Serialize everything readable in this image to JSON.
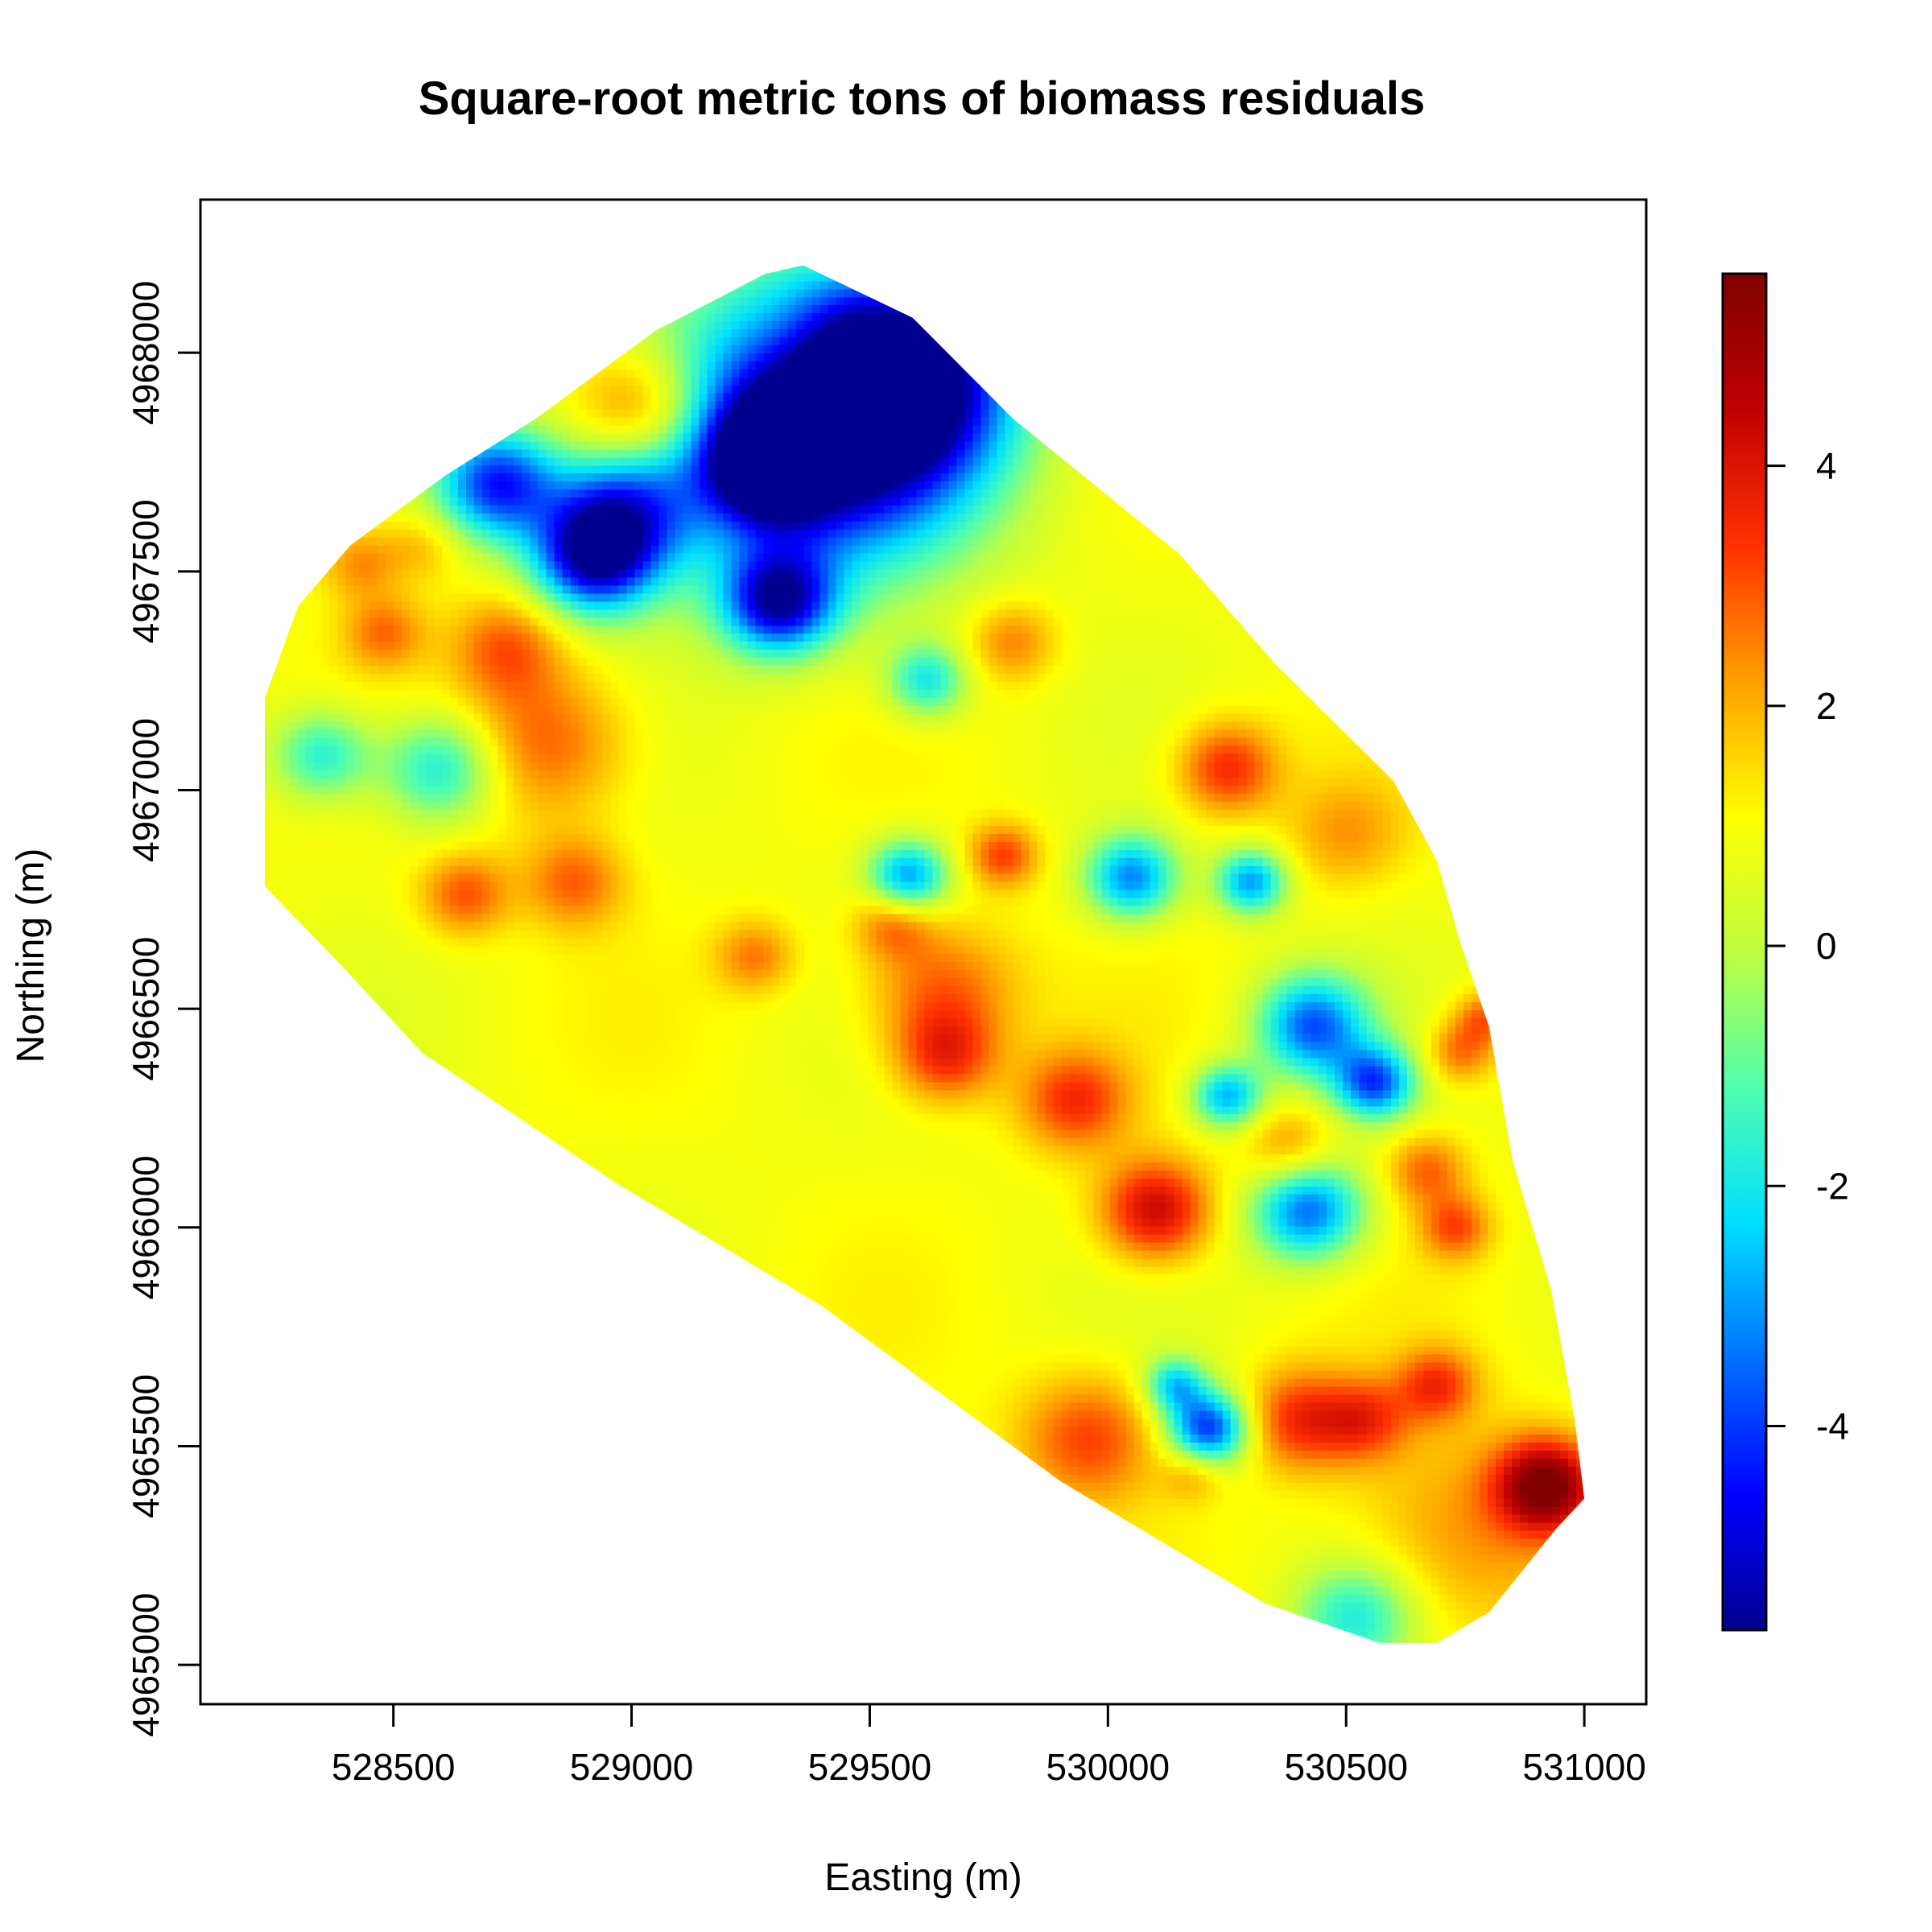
{
  "chart_data": {
    "type": "heatmap",
    "title": "Square-root metric tons of biomass residuals",
    "xlabel": "Easting (m)",
    "ylabel": "Northing (m)",
    "xlim": [
      528095,
      531130
    ],
    "ylim": [
      4964910,
      4968350
    ],
    "x_ticks": [
      528500,
      529000,
      529500,
      530000,
      530500,
      531000
    ],
    "y_ticks": [
      4965000,
      4965500,
      4966000,
      4966500,
      4967000,
      4967500,
      4968000
    ],
    "grid": false,
    "legend": "right",
    "colorbar": {
      "range": [
        -5.7,
        5.6
      ],
      "ticks": [
        -4,
        -2,
        0,
        2,
        4
      ],
      "palette": [
        "#00008F",
        "#0000FF",
        "#0070FF",
        "#00DFFF",
        "#50FFAF",
        "#BFFF40",
        "#FFFF00",
        "#FF9F00",
        "#FF3000",
        "#BF0000",
        "#800000"
      ]
    },
    "survey_boundary": [
      [
        528230,
        4967210
      ],
      [
        528300,
        4967420
      ],
      [
        528410,
        4967560
      ],
      [
        528610,
        4967720
      ],
      [
        528800,
        4967850
      ],
      [
        529050,
        4968050
      ],
      [
        529280,
        4968180
      ],
      [
        529360,
        4968200
      ],
      [
        529590,
        4968080
      ],
      [
        529800,
        4967850
      ],
      [
        530150,
        4967540
      ],
      [
        530350,
        4967290
      ],
      [
        530600,
        4967020
      ],
      [
        530690,
        4966840
      ],
      [
        530740,
        4966650
      ],
      [
        530800,
        4966460
      ],
      [
        530850,
        4966150
      ],
      [
        530930,
        4965860
      ],
      [
        530980,
        4965560
      ],
      [
        531000,
        4965380
      ],
      [
        530940,
        4965310
      ],
      [
        530800,
        4965120
      ],
      [
        530690,
        4965050
      ],
      [
        530570,
        4965050
      ],
      [
        530330,
        4965140
      ],
      [
        529900,
        4965420
      ],
      [
        529400,
        4965820
      ],
      [
        528970,
        4966100
      ],
      [
        528560,
        4966400
      ],
      [
        528390,
        4966600
      ],
      [
        528230,
        4966780
      ]
    ],
    "background": 0.9,
    "anomalies": [
      {
        "x": 529380,
        "y": 4967820,
        "v": -5.4,
        "r": 320
      },
      {
        "x": 529560,
        "y": 4967940,
        "v": -5.0,
        "r": 220
      },
      {
        "x": 529290,
        "y": 4967750,
        "v": -4.8,
        "r": 120
      },
      {
        "x": 529310,
        "y": 4967430,
        "v": -4.6,
        "r": 110
      },
      {
        "x": 528920,
        "y": 4967530,
        "v": -4.6,
        "r": 120
      },
      {
        "x": 528720,
        "y": 4967700,
        "v": -4.2,
        "r": 120
      },
      {
        "x": 528980,
        "y": 4967640,
        "v": -3.0,
        "r": 140
      },
      {
        "x": 529020,
        "y": 4967870,
        "v": 3.4,
        "r": 130
      },
      {
        "x": 529330,
        "y": 4968030,
        "v": 1.6,
        "r": 100
      },
      {
        "x": 528820,
        "y": 4967110,
        "v": 3.0,
        "r": 170
      },
      {
        "x": 528740,
        "y": 4967330,
        "v": 2.8,
        "r": 110
      },
      {
        "x": 528600,
        "y": 4967050,
        "v": -2.2,
        "r": 120
      },
      {
        "x": 528350,
        "y": 4967080,
        "v": -1.8,
        "r": 100
      },
      {
        "x": 528480,
        "y": 4967360,
        "v": 2.6,
        "r": 80
      },
      {
        "x": 528430,
        "y": 4967520,
        "v": 2.4,
        "r": 80
      },
      {
        "x": 528560,
        "y": 4967560,
        "v": 2.0,
        "r": 80
      },
      {
        "x": 528650,
        "y": 4966760,
        "v": 3.0,
        "r": 90
      },
      {
        "x": 528880,
        "y": 4966790,
        "v": 2.8,
        "r": 100
      },
      {
        "x": 529260,
        "y": 4966620,
        "v": 2.6,
        "r": 80
      },
      {
        "x": 529650,
        "y": 4966540,
        "v": 3.0,
        "r": 150
      },
      {
        "x": 529660,
        "y": 4966390,
        "v": 3.2,
        "r": 100
      },
      {
        "x": 529550,
        "y": 4966700,
        "v": 2.8,
        "r": 80
      },
      {
        "x": 529780,
        "y": 4966850,
        "v": 3.2,
        "r": 70
      },
      {
        "x": 529800,
        "y": 4967340,
        "v": 2.6,
        "r": 90
      },
      {
        "x": 530250,
        "y": 4967050,
        "v": 3.6,
        "r": 100
      },
      {
        "x": 530500,
        "y": 4966900,
        "v": 2.2,
        "r": 120
      },
      {
        "x": 529580,
        "y": 4966800,
        "v": -3.2,
        "r": 80
      },
      {
        "x": 529620,
        "y": 4967250,
        "v": -2.0,
        "r": 80
      },
      {
        "x": 530050,
        "y": 4966800,
        "v": -3.2,
        "r": 90
      },
      {
        "x": 530300,
        "y": 4966790,
        "v": -3.0,
        "r": 70
      },
      {
        "x": 530430,
        "y": 4966460,
        "v": -3.6,
        "r": 110
      },
      {
        "x": 530560,
        "y": 4966330,
        "v": -3.6,
        "r": 80
      },
      {
        "x": 530420,
        "y": 4966040,
        "v": -3.6,
        "r": 110
      },
      {
        "x": 530250,
        "y": 4966300,
        "v": -2.8,
        "r": 70
      },
      {
        "x": 529930,
        "y": 4966290,
        "v": 3.4,
        "r": 110
      },
      {
        "x": 530100,
        "y": 4966040,
        "v": 4.4,
        "r": 110
      },
      {
        "x": 530380,
        "y": 4966180,
        "v": 2.6,
        "r": 90
      },
      {
        "x": 530670,
        "y": 4966130,
        "v": 2.8,
        "r": 80
      },
      {
        "x": 530730,
        "y": 4966000,
        "v": 3.0,
        "r": 70
      },
      {
        "x": 530740,
        "y": 4966400,
        "v": 2.8,
        "r": 70
      },
      {
        "x": 530790,
        "y": 4966480,
        "v": 2.8,
        "r": 60
      },
      {
        "x": 529960,
        "y": 4965520,
        "v": 3.2,
        "r": 140
      },
      {
        "x": 530210,
        "y": 4965540,
        "v": -4.2,
        "r": 80
      },
      {
        "x": 530140,
        "y": 4965640,
        "v": -2.2,
        "r": 60
      },
      {
        "x": 530400,
        "y": 4965560,
        "v": 3.4,
        "r": 110
      },
      {
        "x": 530540,
        "y": 4965560,
        "v": 3.0,
        "r": 90
      },
      {
        "x": 530690,
        "y": 4965640,
        "v": 3.2,
        "r": 80
      },
      {
        "x": 530920,
        "y": 4965410,
        "v": 5.4,
        "r": 100
      },
      {
        "x": 530750,
        "y": 4965300,
        "v": 2.4,
        "r": 230
      },
      {
        "x": 530520,
        "y": 4965110,
        "v": -1.8,
        "r": 120
      },
      {
        "x": 530180,
        "y": 4965440,
        "v": 2.2,
        "r": 60
      }
    ]
  }
}
